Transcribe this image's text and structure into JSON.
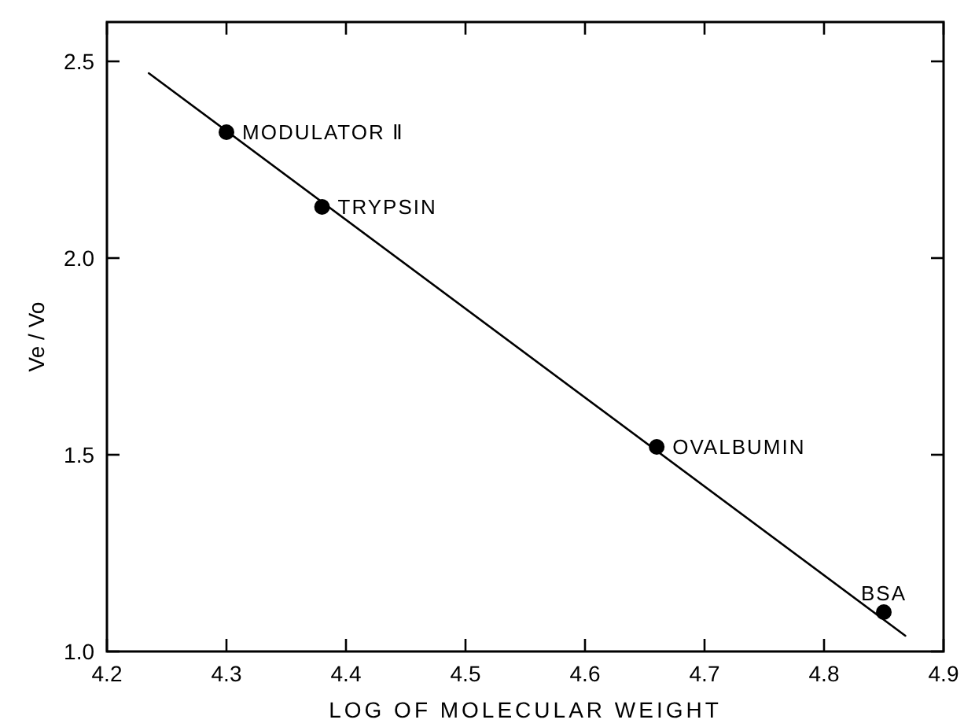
{
  "chart_data": {
    "type": "scatter",
    "xlabel": "LOG OF MOLECULAR WEIGHT",
    "ylabel": "Ve / Vo",
    "xlim": [
      4.2,
      4.9
    ],
    "ylim": [
      1.0,
      2.6
    ],
    "xticks": [
      4.2,
      4.3,
      4.4,
      4.5,
      4.6,
      4.7,
      4.8,
      4.9
    ],
    "yticks": [
      {
        "value": 1.0,
        "label": "1.0"
      },
      1.5,
      {
        "value": 2.0,
        "label": "2.0"
      },
      2.5
    ],
    "grid": false,
    "marker": "circle",
    "series": [
      {
        "color": "#000000",
        "x": [
          4.3,
          4.38,
          4.66,
          4.85
        ],
        "values": [
          2.32,
          2.13,
          1.52,
          1.1
        ]
      },
      {
        "type": "line",
        "color": "#000000",
        "marker": "none",
        "x": [
          4.235,
          4.868
        ],
        "values": [
          2.47,
          1.04
        ]
      }
    ],
    "annotations": [
      {
        "text": "MODULATOR Ⅱ",
        "x": 4.3,
        "y": 2.32
      },
      {
        "text": "TRYPSIN",
        "x": 4.38,
        "y": 2.13
      },
      {
        "text": "OVALBUMIN",
        "x": 4.66,
        "y": 1.52
      },
      {
        "text": "BSA",
        "x": 4.85,
        "y": 1.1
      }
    ]
  }
}
